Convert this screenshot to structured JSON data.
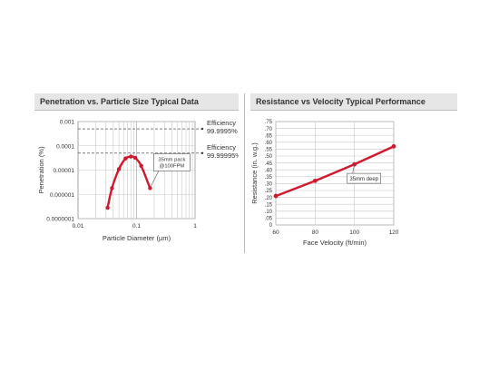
{
  "left_panel": {
    "title": "Penetration vs. Particle Size Typical Data"
  },
  "right_panel": {
    "title": "Resistance vs Velocity Typical Performance"
  },
  "chart_data": [
    {
      "type": "line",
      "title": "Penetration vs. Particle Size Typical Data",
      "xlabel": "Particle Diameter (µm)",
      "ylabel": "Penetration (%)",
      "xscale": "log",
      "yscale": "log",
      "xlim": [
        0.01,
        1
      ],
      "ylim": [
        1e-07,
        0.001
      ],
      "grid": true,
      "x_ticks": [
        {
          "value": 0.01,
          "label": "0.01"
        },
        {
          "value": 0.1,
          "label": "0.1"
        },
        {
          "value": 1,
          "label": "1"
        }
      ],
      "y_ticks": [
        {
          "value": 0.001,
          "label": "0.001"
        },
        {
          "value": 0.0001,
          "label": "0.0001"
        },
        {
          "value": 1e-05,
          "label": "0.00001"
        },
        {
          "value": 1e-06,
          "label": "0.000001"
        },
        {
          "value": 1e-07,
          "label": "0.0000001"
        }
      ],
      "series": [
        {
          "color": "#d0192d",
          "x": [
            0.032,
            0.038,
            0.05,
            0.065,
            0.08,
            0.095,
            0.12,
            0.17
          ],
          "y": [
            2.8e-07,
            1.8e-06,
            1.1e-05,
            3e-05,
            3.6e-05,
            3.2e-05,
            1.5e-05,
            1.8e-06
          ]
        }
      ],
      "reference_lines": [
        {
          "y": 0.0005,
          "label_line1": "Efficiency",
          "label_line2": "99.9995%"
        },
        {
          "y": 5e-05,
          "label_line1": "Efficiency",
          "label_line2": "99.99995%"
        }
      ],
      "annotation": {
        "line1": "35mm pack",
        "line2": "@100FPM",
        "x": 0.17,
        "y": 1.8e-06
      }
    },
    {
      "type": "line",
      "title": "Resistance vs Velocity Typical Performance",
      "xlabel": "Face Velocity (ft/min)",
      "ylabel": "Resistance (in. w.g.)",
      "xlim": [
        60,
        120
      ],
      "ylim": [
        0,
        0.75
      ],
      "grid": true,
      "x_ticks": [
        {
          "value": 60,
          "label": "60"
        },
        {
          "value": 80,
          "label": "80"
        },
        {
          "value": 100,
          "label": "100"
        },
        {
          "value": 120,
          "label": "120"
        }
      ],
      "y_ticks": [
        {
          "value": 0.75,
          "label": ".75"
        },
        {
          "value": 0.7,
          "label": ".70"
        },
        {
          "value": 0.65,
          "label": ".65"
        },
        {
          "value": 0.6,
          "label": ".60"
        },
        {
          "value": 0.55,
          "label": ".55"
        },
        {
          "value": 0.5,
          "label": ".50"
        },
        {
          "value": 0.45,
          "label": ".45"
        },
        {
          "value": 0.4,
          "label": ".40"
        },
        {
          "value": 0.35,
          "label": ".35"
        },
        {
          "value": 0.3,
          "label": ".30"
        },
        {
          "value": 0.25,
          "label": ".25"
        },
        {
          "value": 0.2,
          "label": ".20"
        },
        {
          "value": 0.15,
          "label": ".15"
        },
        {
          "value": 0.1,
          "label": ".10"
        },
        {
          "value": 0.05,
          "label": ".05"
        },
        {
          "value": 0,
          "label": "0"
        }
      ],
      "series": [
        {
          "color": "#d0192d",
          "x": [
            60,
            80,
            100,
            120
          ],
          "y": [
            0.21,
            0.32,
            0.44,
            0.57
          ]
        }
      ],
      "annotation": {
        "line1": "35mm deep",
        "x": 100,
        "y": 0.44
      }
    }
  ]
}
